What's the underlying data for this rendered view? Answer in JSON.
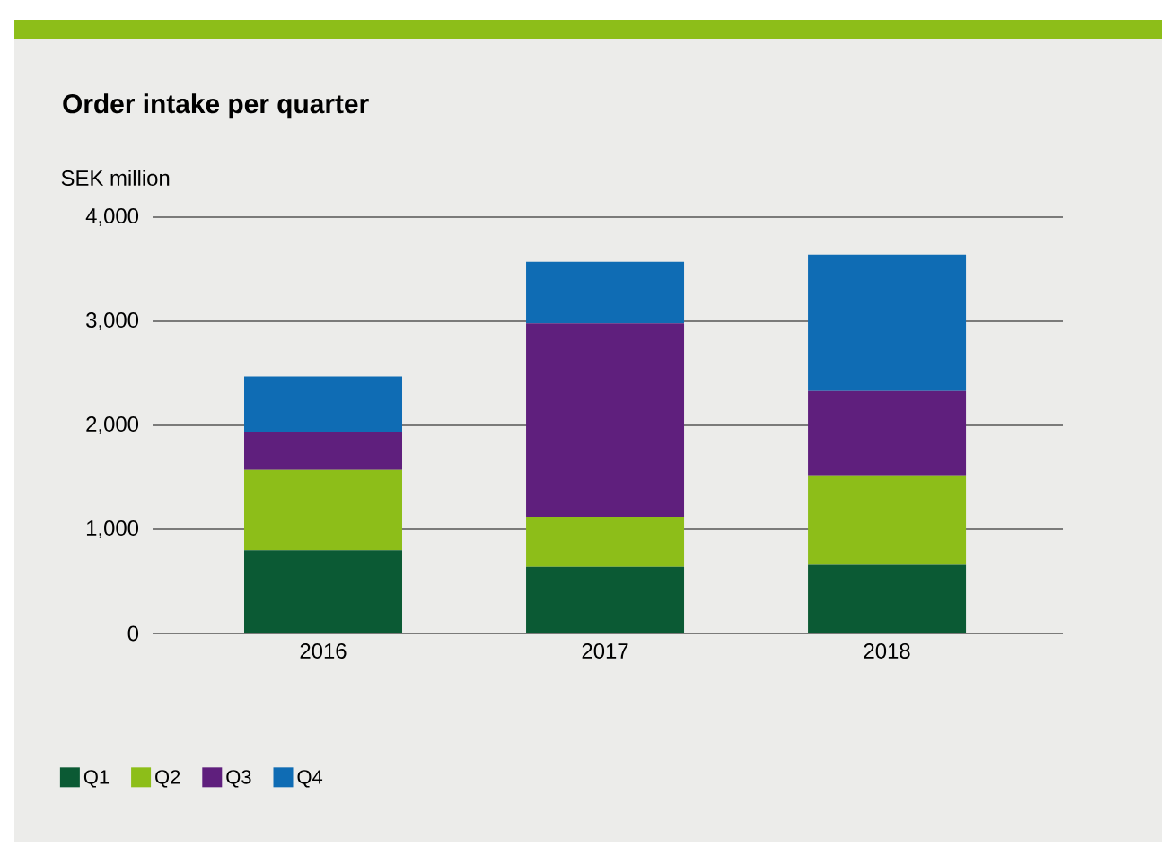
{
  "chart_data": {
    "type": "bar",
    "stacked": true,
    "title": "Order intake per quarter",
    "ylabel": "SEK million",
    "categories": [
      "2016",
      "2017",
      "2018"
    ],
    "series": [
      {
        "name": "Q1",
        "color": "#0b5a34",
        "values": [
          800,
          640,
          660
        ]
      },
      {
        "name": "Q2",
        "color": "#8dbe19",
        "values": [
          770,
          480,
          860
        ]
      },
      {
        "name": "Q3",
        "color": "#5f1f7d",
        "values": [
          360,
          1860,
          810
        ]
      },
      {
        "name": "Q4",
        "color": "#0f6cb4",
        "values": [
          540,
          590,
          1310
        ]
      }
    ],
    "ylim": [
      0,
      4000
    ],
    "yticks": [
      0,
      {
        "value": 1000,
        "label": "1,000"
      },
      {
        "value": 2000,
        "label": "2,000"
      },
      {
        "value": 3000,
        "label": "3,000"
      },
      {
        "value": 4000,
        "label": "4,000"
      }
    ],
    "grid": "y",
    "legend": "bottom left"
  }
}
